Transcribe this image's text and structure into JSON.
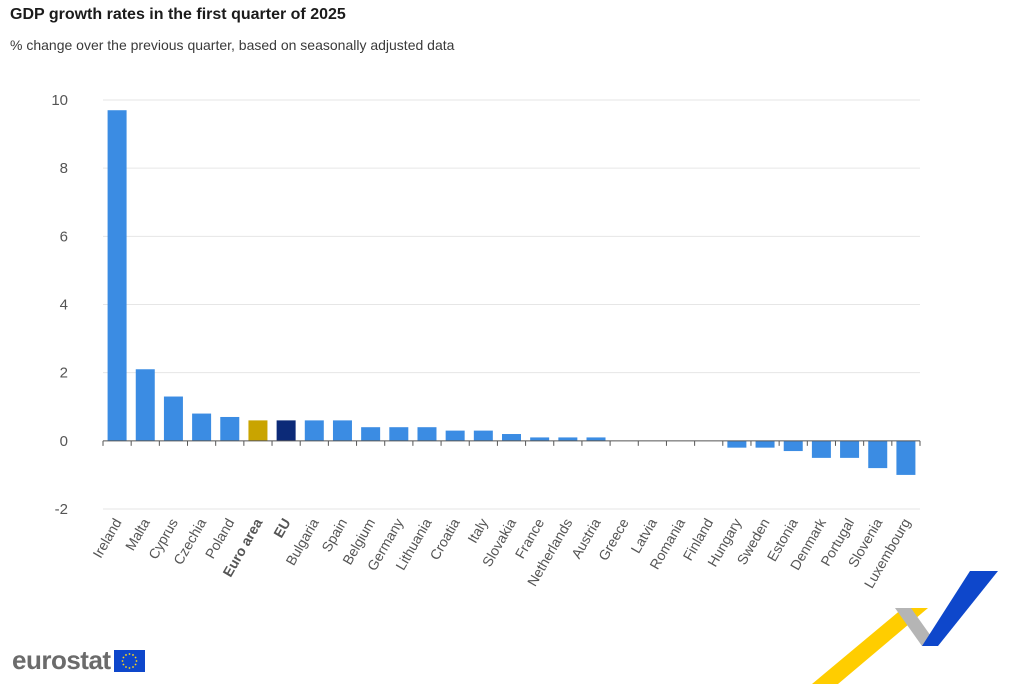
{
  "header": {
    "title": "GDP growth rates in the first quarter of 2025",
    "subtitle": "% change over the previous quarter, based on seasonally adjusted data"
  },
  "logo": {
    "text": "eurostat",
    "flag_icon": "eu-flag-icon"
  },
  "colors": {
    "country": "#3b8ce3",
    "euro_area": "#c9a400",
    "eu": "#0c2a78",
    "grid": "#e6e6e6",
    "axis": "#555555",
    "decor_yellow": "#ffcd00",
    "decor_grey": "#b5b5b5",
    "decor_blue": "#0e47cb"
  },
  "chart_data": {
    "type": "bar",
    "title": "GDP growth rates in the first quarter of 2025",
    "subtitle": "% change over the previous quarter, based on seasonally adjusted data",
    "xlabel": "",
    "ylabel": "",
    "ylim": [
      -2,
      10
    ],
    "yticks": [
      -2,
      0,
      2,
      4,
      6,
      8,
      10
    ],
    "grid": true,
    "legend": "none",
    "categories": [
      "Ireland",
      "Malta",
      "Cyprus",
      "Czechia",
      "Poland",
      "Euro area",
      "EU",
      "Bulgaria",
      "Spain",
      "Belgium",
      "Germany",
      "Lithuania",
      "Croatia",
      "Italy",
      "Slovakia",
      "France",
      "Netherlands",
      "Austria",
      "Greece",
      "Latvia",
      "Romania",
      "Finland",
      "Hungary",
      "Sweden",
      "Estonia",
      "Denmark",
      "Portugal",
      "Slovenia",
      "Luxembourg"
    ],
    "values": [
      9.7,
      2.1,
      1.3,
      0.8,
      0.7,
      0.6,
      0.6,
      0.6,
      0.6,
      0.4,
      0.4,
      0.4,
      0.3,
      0.3,
      0.2,
      0.1,
      0.1,
      0.1,
      0.0,
      0.0,
      0.0,
      0.0,
      -0.2,
      -0.2,
      -0.3,
      -0.5,
      -0.5,
      -0.8,
      -1.0
    ],
    "bar_groups": [
      "country",
      "country",
      "country",
      "country",
      "country",
      "euro_area",
      "eu",
      "country",
      "country",
      "country",
      "country",
      "country",
      "country",
      "country",
      "country",
      "country",
      "country",
      "country",
      "country",
      "country",
      "country",
      "country",
      "country",
      "country",
      "country",
      "country",
      "country",
      "country",
      "country"
    ],
    "bold_labels": [
      "Euro area",
      "EU"
    ]
  }
}
